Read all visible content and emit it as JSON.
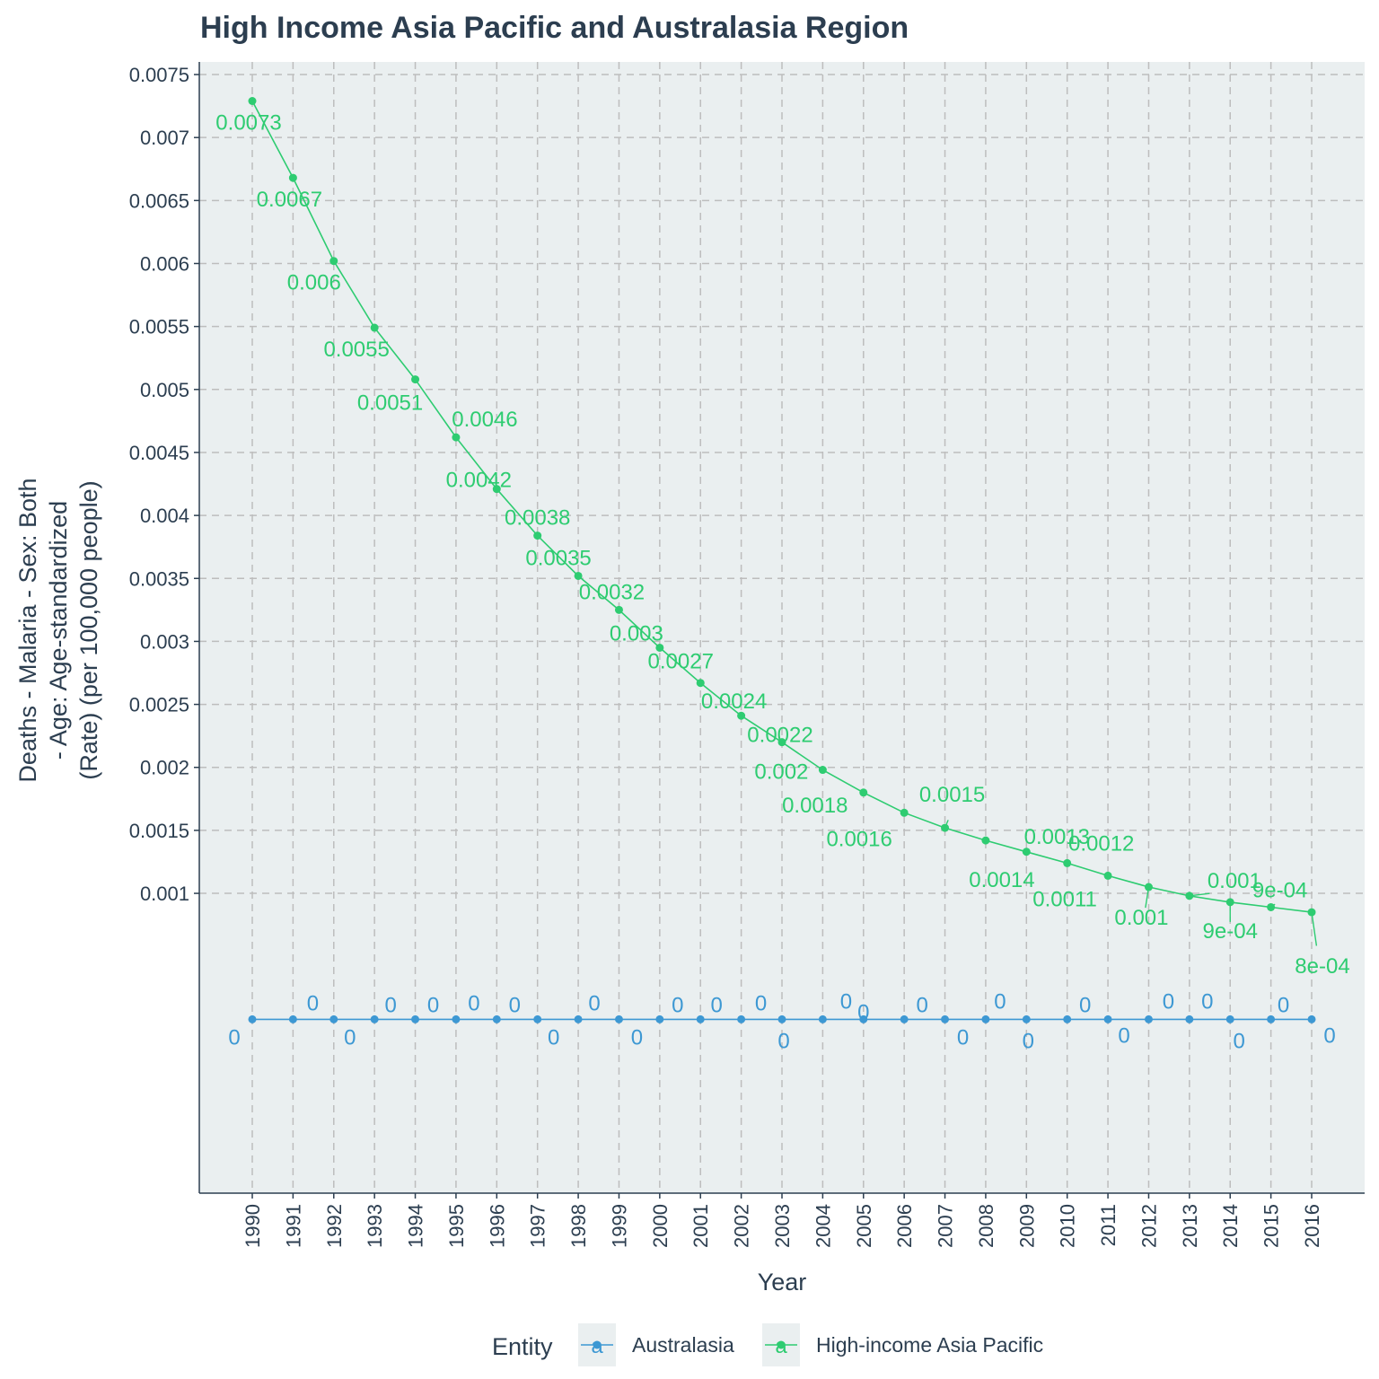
{
  "colors": {
    "panel_background": "#eaeff0",
    "grid": "#bdbdbd",
    "axis": "#2c3e50",
    "text": "#2c3e50",
    "australasia": "#3d98d3",
    "high_income_asia_pacific": "#2ecc71"
  },
  "chart_data": {
    "type": "line",
    "title": "High Income Asia Pacific  and Australasia Region",
    "xlabel": "Year",
    "ylabel": "Deaths - Malaria - Sex: Both - Age: Age-standardized (Rate) (per 100,000 people)",
    "ylabel_lines": [
      "Deaths - Malaria - Sex: Both",
      "- Age: Age-standardized",
      "(Rate) (per 100,000 people)"
    ],
    "ylim": [
      -0.00138,
      0.0076
    ],
    "yticks": [
      0.001,
      0.0015,
      0.002,
      0.0025,
      0.003,
      0.0035,
      0.004,
      0.0045,
      0.005,
      0.0055,
      0.006,
      0.0065,
      0.007,
      0.0075
    ],
    "ytick_labels": [
      "0.001",
      "0.0015",
      "0.002",
      "0.0025",
      "0.003",
      "0.0035",
      "0.004",
      "0.0045",
      "0.005",
      "0.0055",
      "0.006",
      "0.0065",
      "0.007",
      "0.0075"
    ],
    "x": [
      1990,
      1991,
      1992,
      1993,
      1994,
      1995,
      1996,
      1997,
      1998,
      1999,
      2000,
      2001,
      2002,
      2003,
      2004,
      2005,
      2006,
      2007,
      2008,
      2009,
      2010,
      2011,
      2012,
      2013,
      2014,
      2015,
      2016
    ],
    "xtick_labels": [
      "1990",
      "1991",
      "1992",
      "1993",
      "1994",
      "1995",
      "1996",
      "1997",
      "1998",
      "1999",
      "2000",
      "2001",
      "2002",
      "2003",
      "2004",
      "2005",
      "2006",
      "2007",
      "2008",
      "2009",
      "2010",
      "2011",
      "2012",
      "2013",
      "2014",
      "2015",
      "2016"
    ],
    "grid": true,
    "legend_position": "bottom",
    "legend_title": "Entity",
    "legend_key_glyph": "a",
    "series": [
      {
        "name": "Australasia",
        "color": "#3d98d3",
        "values": [
          0,
          0,
          0,
          0,
          0,
          0,
          0,
          0,
          0,
          0,
          0,
          0,
          0,
          0,
          0,
          0,
          0,
          0,
          0,
          0,
          0,
          0,
          0,
          0,
          0,
          0,
          0
        ],
        "labels": [
          "0",
          "0",
          "0",
          "0",
          "0",
          "0",
          "0",
          "0",
          "0",
          "0",
          "0",
          "0",
          "0",
          "0",
          "0",
          "0",
          "0",
          "0",
          "0",
          "0",
          "0",
          "0",
          "0",
          "0",
          "0",
          "0",
          "0"
        ]
      },
      {
        "name": "High-income Asia Pacific",
        "color": "#2ecc71",
        "values": [
          0.00729,
          0.00668,
          0.00602,
          0.00549,
          0.00508,
          0.00462,
          0.00421,
          0.00384,
          0.00352,
          0.00325,
          0.00295,
          0.00267,
          0.00241,
          0.0022,
          0.00198,
          0.0018,
          0.00164,
          0.00152,
          0.00142,
          0.00133,
          0.00124,
          0.00114,
          0.00105,
          0.00098,
          0.00093,
          0.00089,
          0.00085
        ],
        "labels": [
          "0.0073",
          "0.0067",
          "0.006",
          "0.0055",
          "0.0051",
          "0.0046",
          "0.0042",
          "0.0038",
          "0.0035",
          "0.0032",
          "0.003",
          "0.0027",
          "0.0024",
          "0.0022",
          "0.002",
          "0.0018",
          "0.0016",
          "0.0015",
          "0.0014",
          "0.0013",
          "0.0012",
          "0.0011",
          "0.001",
          "0.001",
          "9e-04",
          "9e-04",
          "8e-04"
        ]
      }
    ]
  }
}
